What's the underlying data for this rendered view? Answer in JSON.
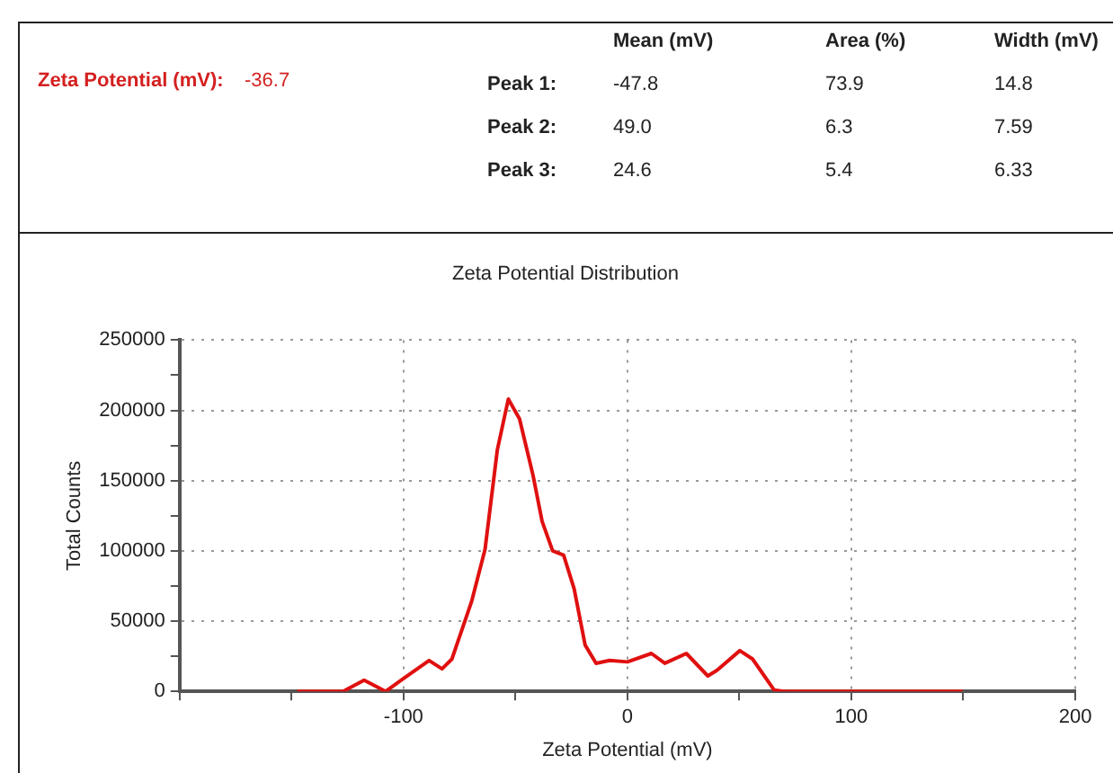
{
  "chart_data": [
    {
      "type": "other",
      "annotations": [
        "Zeta Potential (mV):",
        "-36.7",
        "Mean (mV)",
        "Area (%)",
        "Width (mV)",
        "Peak 1:",
        "-47.8",
        "73.9",
        "14.8",
        "Peak 2:",
        "49.0",
        "6.3",
        "7.59",
        "Peak 3:",
        "24.6",
        "5.4",
        "6.33"
      ]
    },
    {
      "type": "line",
      "title": "Zeta Potential Distribution",
      "xlabel": "Zeta Potential (mV)",
      "ylabel": "Total Counts",
      "x": [
        -147.5,
        -127,
        -117.6,
        -108,
        -101,
        -88.6,
        -82.8,
        -78.4,
        -69.6,
        -63.6,
        -58.1,
        -53.2,
        -48.2,
        -42.2,
        -38.1,
        -33.4,
        -28.5,
        -23.8,
        -18.9,
        -14,
        -8,
        0,
        10.7,
        16.7,
        26.3,
        35.9,
        40,
        50.2,
        55.9,
        65.5,
        70,
        99,
        149.7
      ],
      "series": [
        {
          "color": "#e01010",
          "values": [
            0,
            0,
            8000,
            0,
            8000,
            22000,
            16000,
            23000,
            64000,
            101000,
            172000,
            208000,
            194000,
            154000,
            121000,
            100000,
            97000,
            73000,
            33000,
            20000,
            22000,
            21000,
            27000,
            20000,
            27000,
            11000,
            15000,
            29000,
            23000,
            1000,
            0,
            0,
            0
          ]
        }
      ],
      "xlim": [
        -200,
        200
      ],
      "xticks": [
        {
          "value": -200,
          "label": null
        },
        {
          "value": -150,
          "label": null
        },
        -100,
        {
          "value": -50,
          "label": null
        },
        0,
        {
          "value": 50,
          "label": null
        },
        100,
        {
          "value": 150,
          "label": null
        },
        200
      ],
      "ylim": [
        0,
        250000
      ],
      "yticks": [
        0,
        {
          "value": 25000,
          "label": null
        },
        50000,
        {
          "value": 75000,
          "label": null
        },
        100000,
        {
          "value": 125000,
          "label": null
        },
        150000,
        {
          "value": 175000,
          "label": null
        },
        200000,
        {
          "value": 225000,
          "label": null
        },
        250000
      ],
      "grid": true,
      "legend": false,
      "marker": "none",
      "line_style": "solid"
    }
  ]
}
